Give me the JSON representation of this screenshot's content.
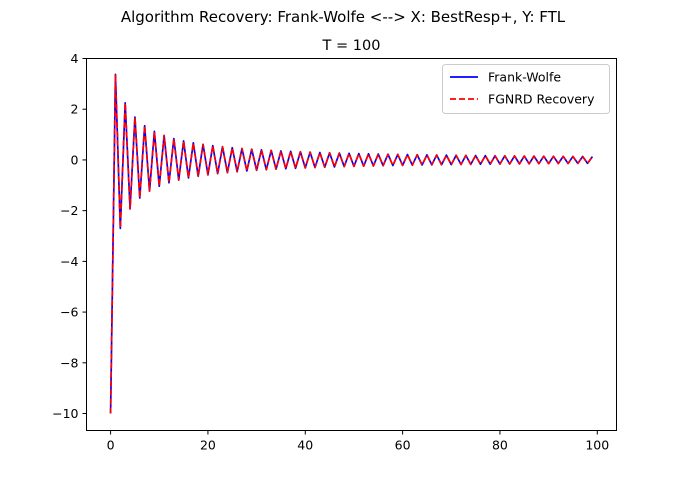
{
  "figure": {
    "suptitle": "Algorithm Recovery: Frank-Wolfe <--> X: BestResp+, Y: FTL"
  },
  "chart_data": {
    "type": "line",
    "title": "T = 100",
    "xlabel": "",
    "ylabel": "",
    "xlim": [
      -4.95,
      103.95
    ],
    "ylim": [
      -10.67,
      4.0
    ],
    "xticks": [
      0,
      20,
      40,
      60,
      80,
      100
    ],
    "yticks": [
      -10,
      -8,
      -6,
      -4,
      -2,
      0,
      2,
      4
    ],
    "grid": false,
    "legend_position": "top-right",
    "series": [
      {
        "name": "Frank-Wolfe",
        "color": "#0000ff",
        "style": "solid",
        "generator": {
          "t_start": 0,
          "t_end": 99,
          "first_value": -10,
          "rule": "y[t] = (-1)^(t+1) * A / (t+B) + C / t, t >= 1",
          "A": 13.5,
          "B": 3.0,
          "C": 0.0
        }
      },
      {
        "name": "FGNRD Recovery",
        "color": "#ff0000",
        "style": "dashed",
        "generator": {
          "t_start": 0,
          "t_end": 99,
          "first_value": -10,
          "rule": "y[t] = (-1)^(t+1) * A / (t+B) + C / t, t >= 1",
          "A": 13.5,
          "B": 3.0,
          "C": 0.0
        }
      }
    ]
  }
}
